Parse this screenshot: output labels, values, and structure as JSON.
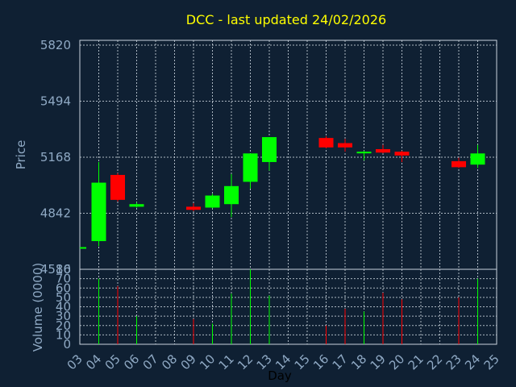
{
  "chart_data": {
    "type": "candlestick",
    "title": "DCC - last updated 24/02/2026",
    "xlabel": "Day",
    "ylabel": "Price",
    "volume_label": "Volume (0000)",
    "x_ticks": [
      "03",
      "04",
      "05",
      "06",
      "07",
      "08",
      "09",
      "10",
      "11",
      "12",
      "13",
      "14",
      "15",
      "16",
      "17",
      "18",
      "19",
      "20",
      "21",
      "22",
      "23",
      "24",
      "25"
    ],
    "y_ticks": [
      4516,
      4842,
      5168,
      5494,
      5820
    ],
    "ylim": [
      4516,
      5820
    ],
    "volume_ticks": [
      0,
      10,
      20,
      30,
      40,
      50,
      60,
      70,
      80
    ],
    "volume_lim": [
      0,
      80
    ],
    "colors": {
      "up": "#00ff00",
      "down": "#ff0000",
      "title": "#ffff00",
      "axis": "#8fa9c4",
      "background": "#0f2033"
    },
    "candles": [
      {
        "day": "03",
        "open": 4640,
        "close": 4645,
        "high": 4645,
        "low": 4638,
        "volume": 0
      },
      {
        "day": "04",
        "open": 4680,
        "close": 5020,
        "high": 5140,
        "low": 4650,
        "volume": 70
      },
      {
        "day": "05",
        "open": 5065,
        "close": 4920,
        "high": 5075,
        "low": 4910,
        "volume": 62
      },
      {
        "day": "06",
        "open": 4880,
        "close": 4895,
        "high": 4905,
        "low": 4875,
        "volume": 30
      },
      {
        "day": "09",
        "open": 4880,
        "close": 4862,
        "high": 4900,
        "low": 4855,
        "volume": 27
      },
      {
        "day": "10",
        "open": 4875,
        "close": 4945,
        "high": 4955,
        "low": 4870,
        "volume": 22
      },
      {
        "day": "11",
        "open": 4895,
        "close": 5000,
        "high": 5070,
        "low": 4820,
        "volume": 54
      },
      {
        "day": "12",
        "open": 5025,
        "close": 5190,
        "high": 5190,
        "low": 4985,
        "volume": 80
      },
      {
        "day": "13",
        "open": 5140,
        "close": 5285,
        "high": 5285,
        "low": 5090,
        "volume": 52
      },
      {
        "day": "16",
        "open": 5280,
        "close": 5225,
        "high": 5290,
        "low": 5220,
        "volume": 20
      },
      {
        "day": "17",
        "open": 5250,
        "close": 5225,
        "high": 5275,
        "low": 5200,
        "volume": 38
      },
      {
        "day": "18",
        "open": 5192,
        "close": 5200,
        "high": 5205,
        "low": 5150,
        "volume": 35
      },
      {
        "day": "19",
        "open": 5215,
        "close": 5195,
        "high": 5240,
        "low": 5190,
        "volume": 55
      },
      {
        "day": "20",
        "open": 5200,
        "close": 5178,
        "high": 5205,
        "low": 5140,
        "volume": 48
      },
      {
        "day": "23",
        "open": 5145,
        "close": 5110,
        "high": 5165,
        "low": 5105,
        "volume": 50
      },
      {
        "day": "24",
        "open": 5125,
        "close": 5190,
        "high": 5240,
        "low": 5105,
        "volume": 70
      }
    ]
  }
}
